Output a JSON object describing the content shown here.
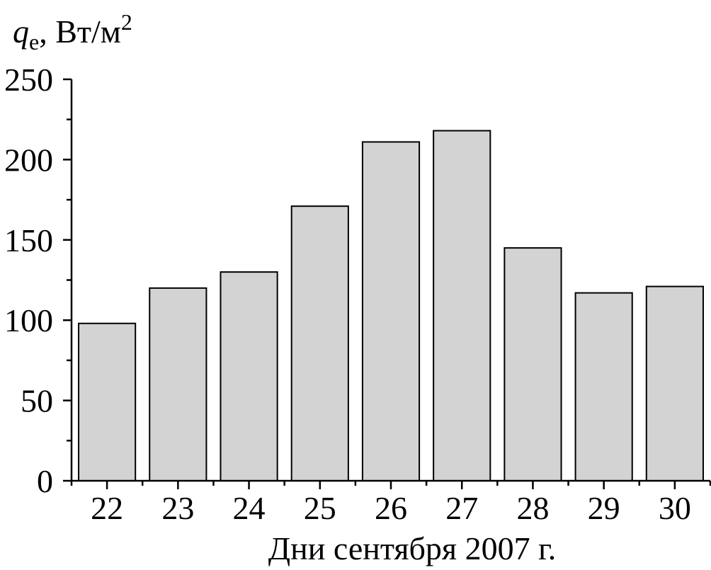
{
  "chart_data": {
    "type": "bar",
    "categories": [
      "22",
      "23",
      "24",
      "25",
      "26",
      "27",
      "28",
      "29",
      "30"
    ],
    "values": [
      98,
      120,
      130,
      171,
      211,
      218,
      145,
      117,
      121
    ],
    "ylabel": {
      "symbol": "q",
      "subscript": "e",
      "unit": ", Вт/м",
      "superscript": "2"
    },
    "xlabel": "Дни сентября 2007 г.",
    "ylim": [
      0,
      250
    ],
    "yticks": [
      "0",
      "50",
      "100",
      "150",
      "200",
      "250"
    ],
    "ytick_values": [
      0,
      50,
      100,
      150,
      200,
      250
    ],
    "grid": false,
    "bar_color": "#d3d3d3",
    "edge_color": "#000000"
  }
}
